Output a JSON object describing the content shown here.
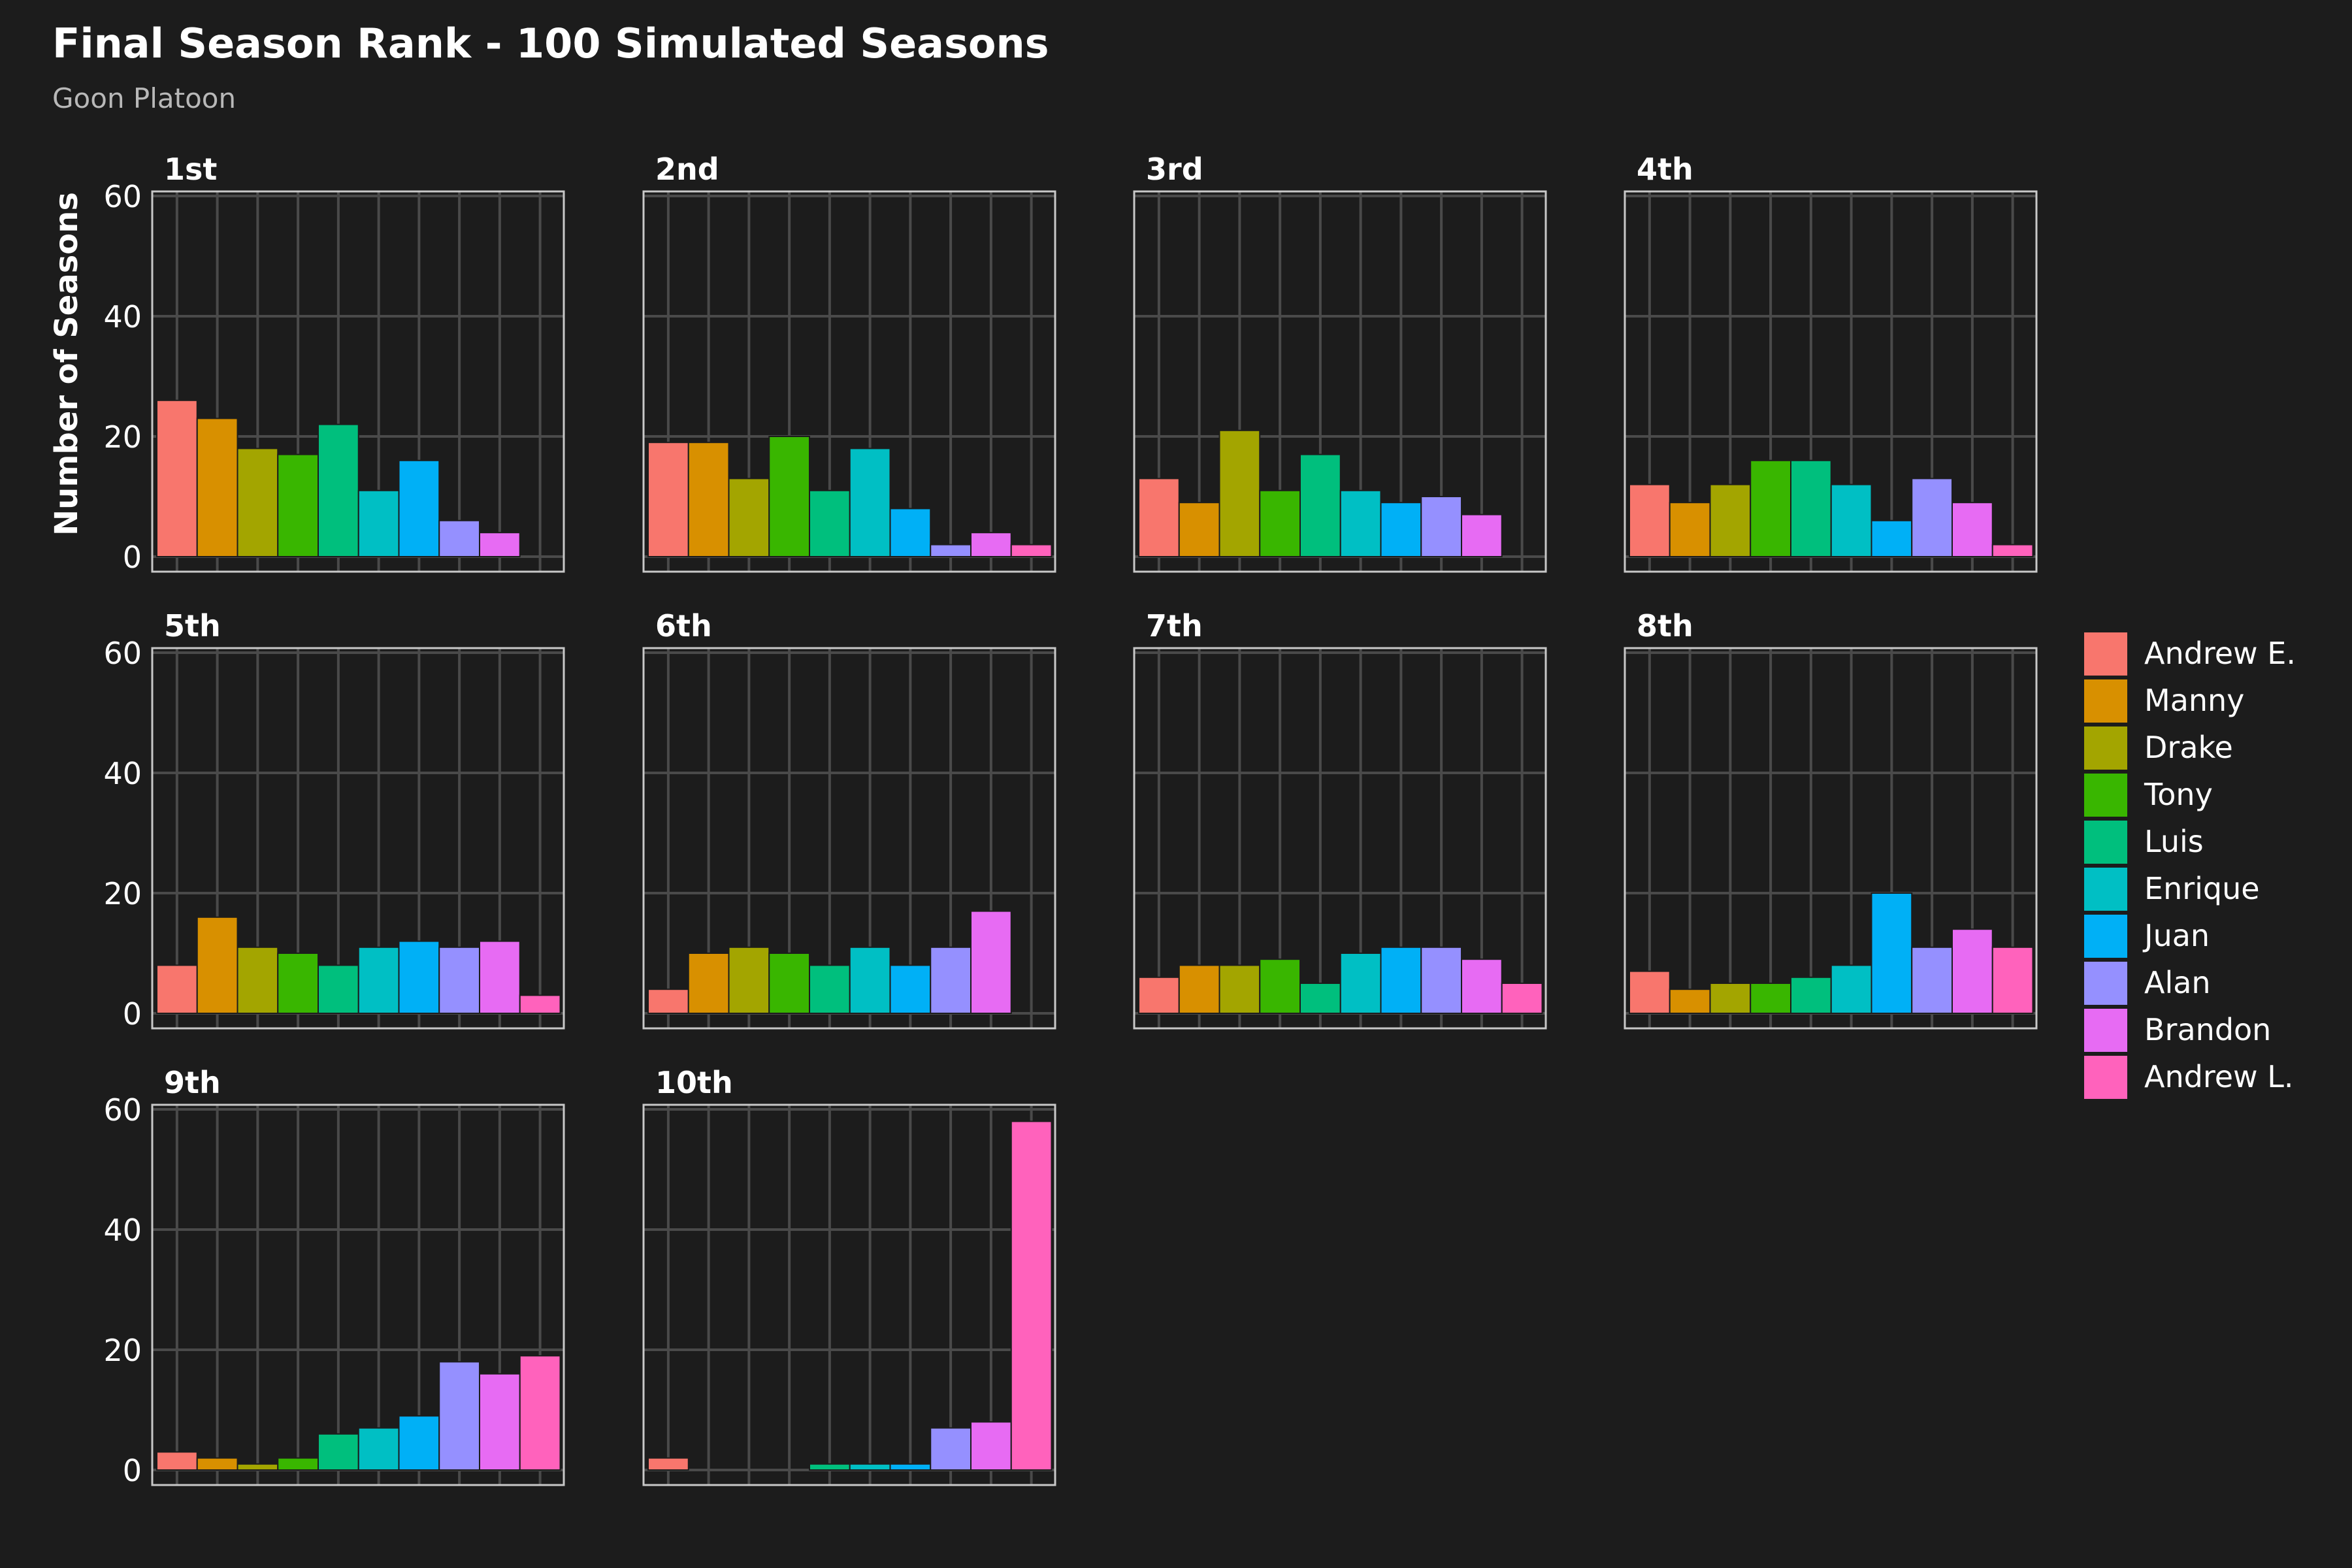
{
  "title": "Final Season Rank - 100 Simulated Seasons",
  "subtitle": "Goon Platoon",
  "chart_data": {
    "type": "bar",
    "facet_by": "Final Season Rank",
    "ylabel": "Number of Seasons",
    "ylim": [
      0,
      60
    ],
    "yticks": [
      0,
      20,
      40,
      60
    ],
    "grid": true,
    "legend_position": "right",
    "teams": [
      {
        "name": "Andrew E.",
        "color": "#F8766D"
      },
      {
        "name": "Manny",
        "color": "#D89000"
      },
      {
        "name": "Drake",
        "color": "#A3A500"
      },
      {
        "name": "Tony",
        "color": "#39B600"
      },
      {
        "name": "Luis",
        "color": "#00BF7D"
      },
      {
        "name": "Enrique",
        "color": "#00BFC4"
      },
      {
        "name": "Juan",
        "color": "#00B0F6"
      },
      {
        "name": "Alan",
        "color": "#9590FF"
      },
      {
        "name": "Brandon",
        "color": "#E76BF3"
      },
      {
        "name": "Andrew L.",
        "color": "#FF62BC"
      }
    ],
    "panels": [
      {
        "label": "1st",
        "values": [
          26,
          23,
          18,
          17,
          22,
          11,
          16,
          6,
          4,
          0
        ]
      },
      {
        "label": "2nd",
        "values": [
          19,
          19,
          13,
          20,
          11,
          18,
          8,
          2,
          4,
          2
        ]
      },
      {
        "label": "3rd",
        "values": [
          13,
          9,
          21,
          11,
          17,
          11,
          9,
          10,
          7,
          0
        ]
      },
      {
        "label": "4th",
        "values": [
          12,
          9,
          12,
          16,
          16,
          12,
          6,
          13,
          9,
          2
        ]
      },
      {
        "label": "5th",
        "values": [
          8,
          16,
          11,
          10,
          8,
          11,
          12,
          11,
          12,
          3
        ]
      },
      {
        "label": "6th",
        "values": [
          4,
          10,
          11,
          10,
          8,
          11,
          8,
          11,
          17,
          0
        ]
      },
      {
        "label": "7th",
        "values": [
          6,
          8,
          8,
          9,
          5,
          10,
          11,
          11,
          9,
          5
        ]
      },
      {
        "label": "8th",
        "values": [
          7,
          4,
          5,
          5,
          6,
          8,
          20,
          11,
          14,
          11
        ]
      },
      {
        "label": "9th",
        "values": [
          3,
          2,
          1,
          2,
          6,
          7,
          9,
          18,
          16,
          19
        ]
      },
      {
        "label": "10th",
        "values": [
          2,
          0,
          0,
          0,
          1,
          1,
          1,
          7,
          8,
          58
        ]
      }
    ]
  }
}
